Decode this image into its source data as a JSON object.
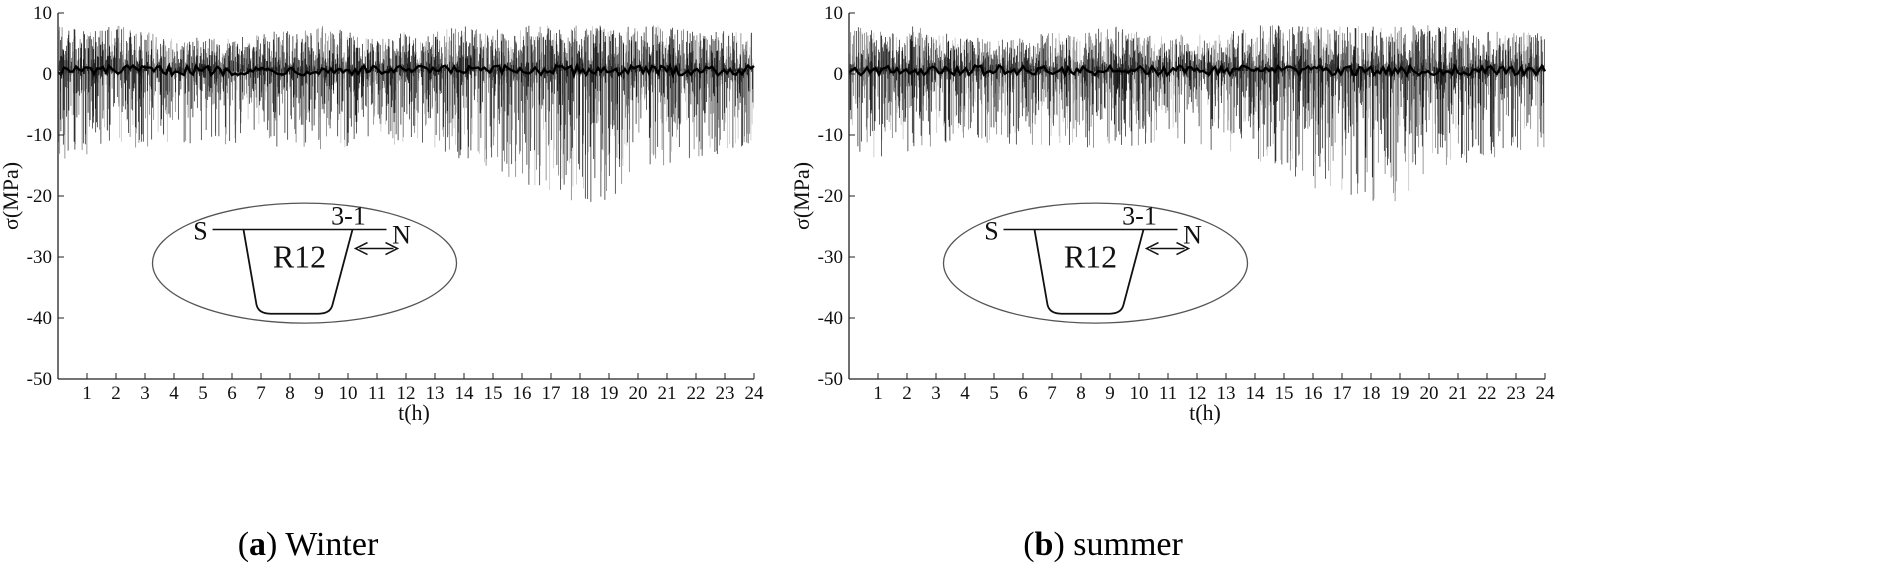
{
  "chart_data": [
    {
      "type": "line",
      "id": "panel-a",
      "caption_letter": "a",
      "caption_text": " Winter",
      "xlabel": "t(h)",
      "ylabel": "σ(MPa)",
      "xlim": [
        0,
        24
      ],
      "ylim": [
        -50,
        10
      ],
      "xticks": [
        1,
        2,
        3,
        4,
        5,
        6,
        7,
        8,
        9,
        10,
        11,
        12,
        13,
        14,
        15,
        16,
        17,
        18,
        19,
        20,
        21,
        22,
        23,
        24
      ],
      "yticks": [
        10,
        0,
        -10,
        -20,
        -30,
        -40,
        -50
      ],
      "grid": false,
      "series_description": "Dense stress time history: baseline near 0 to 1 MPa, positive spikes to about 8 MPa, negative spikes mostly to -10 to -15 MPa, deepest about -21 MPa near 16–19 h",
      "envelope": {
        "hours": [
          0,
          1,
          2,
          3,
          4,
          5,
          6,
          7,
          8,
          9,
          10,
          11,
          12,
          13,
          14,
          15,
          16,
          17,
          18,
          19,
          20,
          21,
          22,
          23,
          24
        ],
        "max": [
          8,
          7,
          8,
          7,
          6,
          6,
          6,
          7,
          7,
          8,
          7,
          6,
          7,
          7,
          8,
          8,
          8,
          8,
          8,
          8,
          8,
          8,
          7,
          7,
          7
        ],
        "min": [
          -14,
          -14,
          -13,
          -12,
          -11,
          -12,
          -12,
          -12,
          -12,
          -13,
          -12,
          -11,
          -12,
          -13,
          -14,
          -16,
          -19,
          -20,
          -21,
          -21,
          -16,
          -15,
          -14,
          -13,
          -12
        ]
      },
      "inset": {
        "left_label": "S",
        "right_label": "N",
        "section_label": "R12",
        "gauge_label": "3-1"
      }
    },
    {
      "type": "line",
      "id": "panel-b",
      "caption_letter": "b",
      "caption_text": " summer",
      "xlabel": "t(h)",
      "ylabel": "σ(MPa)",
      "xlim": [
        0,
        24
      ],
      "ylim": [
        -50,
        10
      ],
      "xticks": [
        1,
        2,
        3,
        4,
        5,
        6,
        7,
        8,
        9,
        10,
        11,
        12,
        13,
        14,
        15,
        16,
        17,
        18,
        19,
        20,
        21,
        22,
        23,
        24
      ],
      "yticks": [
        10,
        0,
        -10,
        -20,
        -30,
        -40,
        -50
      ],
      "grid": false,
      "series_description": "Dense stress time history similar to winter: baseline near 0 to 1 MPa, positive spikes to about 8 MPa, negative spikes mostly to -10 to -15 MPa, deepest about -21 MPa near 16–19 h",
      "envelope": {
        "hours": [
          0,
          1,
          2,
          3,
          4,
          5,
          6,
          7,
          8,
          9,
          10,
          11,
          12,
          13,
          14,
          15,
          16,
          17,
          18,
          19,
          20,
          21,
          22,
          23,
          24
        ],
        "max": [
          8,
          7,
          8,
          7,
          6,
          6,
          6,
          7,
          7,
          8,
          7,
          6,
          7,
          7,
          8,
          8,
          8,
          8,
          8,
          8,
          8,
          8,
          7,
          7,
          7
        ],
        "min": [
          -14,
          -14,
          -13,
          -12,
          -11,
          -12,
          -12,
          -12,
          -12,
          -13,
          -12,
          -11,
          -12,
          -13,
          -14,
          -16,
          -19,
          -20,
          -21,
          -21,
          -16,
          -15,
          -14,
          -13,
          -12
        ]
      },
      "inset": {
        "left_label": "S",
        "right_label": "N",
        "section_label": "R12",
        "gauge_label": "3-1"
      }
    }
  ]
}
